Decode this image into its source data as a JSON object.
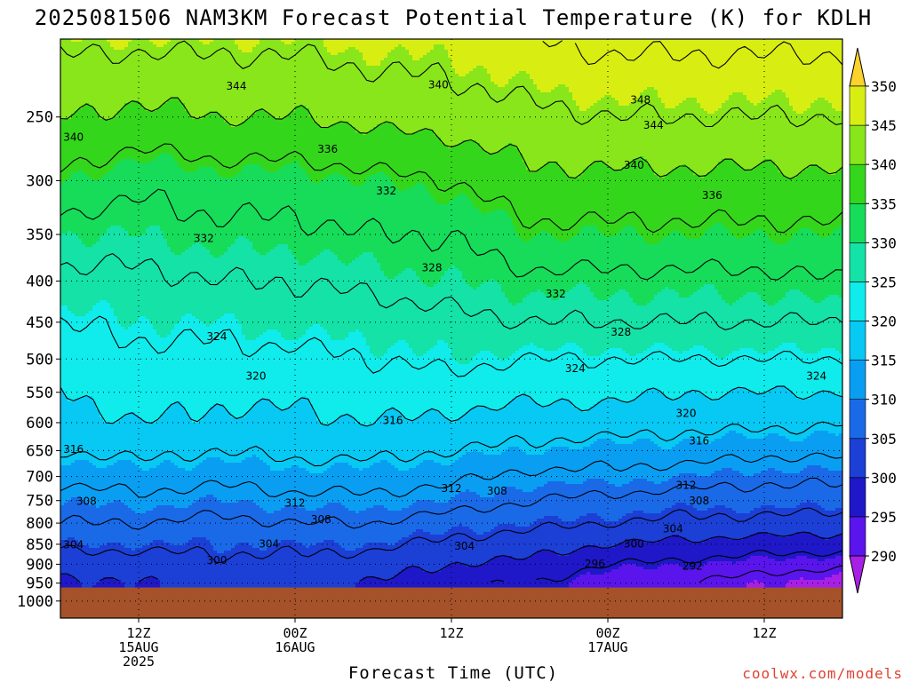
{
  "title": "2025081506 NAM3KM Forecast Potential Temperature (K) for KDLH",
  "xlabel": "Forecast Time (UTC)",
  "watermark": "coolwx.com/models",
  "chart_data": {
    "type": "heatmap",
    "title": "2025081506 NAM3KM Forecast Potential Temperature (K) for KDLH",
    "xlabel": "Forecast Time (UTC)",
    "ylabel": "",
    "y_scale": "log",
    "y_ticks": [
      250,
      300,
      350,
      400,
      450,
      500,
      550,
      600,
      650,
      700,
      750,
      800,
      850,
      900,
      950,
      1000
    ],
    "x_ticks": [
      {
        "hour": 6,
        "label": [
          "12Z",
          "15AUG",
          "2025"
        ]
      },
      {
        "hour": 18,
        "label": [
          "00Z",
          "16AUG"
        ]
      },
      {
        "hour": 30,
        "label": [
          "12Z"
        ]
      },
      {
        "hour": 42,
        "label": [
          "00Z",
          "17AUG"
        ]
      },
      {
        "hour": 54,
        "label": [
          "12Z"
        ]
      }
    ],
    "colorbar": {
      "levels": [
        290,
        295,
        300,
        305,
        310,
        315,
        320,
        325,
        330,
        335,
        340,
        345,
        350
      ],
      "labels": [
        "290",
        "295",
        "300",
        "305",
        "310",
        "315",
        "320",
        "325",
        "330",
        "335",
        "340",
        "345",
        "350"
      ],
      "colors": [
        "#a81fe6",
        "#5a14ec",
        "#1e18c8",
        "#1c3fd6",
        "#1a6ae8",
        "#0a9ef2",
        "#08c8f4",
        "#10ecec",
        "#14e2a6",
        "#16dc5a",
        "#34d61c",
        "#88e61a",
        "#d8ee12",
        "#fce21a",
        "#fcd22c"
      ]
    },
    "ground_color": "#a5522a",
    "theta_x_hours": [
      0,
      6,
      12,
      18,
      24,
      30,
      36,
      42,
      48,
      54,
      60
    ],
    "theta_pressure_levels": [
      950,
      900,
      850,
      800,
      750,
      700,
      650,
      600,
      550,
      500,
      450,
      400,
      350,
      300,
      250,
      200
    ],
    "theta_field": [
      [
        299,
        300,
        301,
        301,
        300,
        297,
        296,
        293,
        292,
        290,
        288
      ],
      [
        302,
        302,
        303,
        303,
        302,
        300,
        299,
        296,
        295,
        294,
        293
      ],
      [
        305,
        305,
        305,
        305,
        305,
        303,
        302,
        300,
        299,
        298,
        298
      ],
      [
        308,
        308,
        307,
        308,
        308,
        306,
        305,
        304,
        303,
        303,
        302
      ],
      [
        310,
        311,
        310,
        311,
        311,
        310,
        308,
        307,
        306,
        306,
        306
      ],
      [
        313,
        314,
        313,
        314,
        314,
        313,
        311,
        311,
        310,
        309,
        309
      ],
      [
        316,
        317,
        316,
        317,
        317,
        316,
        315,
        314,
        314,
        313,
        313
      ],
      [
        318,
        320,
        319,
        319,
        320,
        319,
        318,
        318,
        317,
        317,
        316
      ],
      [
        320,
        322,
        321,
        321,
        322,
        322,
        321,
        321,
        320,
        320,
        320
      ],
      [
        322,
        323,
        323,
        323,
        324,
        325,
        324,
        324,
        324,
        324,
        324
      ],
      [
        324,
        325,
        325,
        326,
        326,
        327,
        328,
        328,
        328,
        328,
        328
      ],
      [
        327,
        327,
        328,
        328,
        329,
        330,
        331,
        331,
        331,
        331,
        332
      ],
      [
        330,
        330,
        331,
        331,
        332,
        332,
        335,
        335,
        335,
        335,
        335
      ],
      [
        335,
        333,
        334,
        334,
        335,
        336,
        339,
        339,
        339,
        339,
        339
      ],
      [
        340,
        339,
        340,
        340,
        341,
        342,
        343,
        344,
        344,
        344,
        344
      ],
      [
        345,
        345,
        345,
        345,
        346,
        346,
        348,
        349,
        349,
        349,
        349
      ]
    ],
    "contour_labels": [
      {
        "value": "344",
        "hour": 13.5,
        "p": 229
      },
      {
        "value": "340",
        "hour": 29,
        "p": 228
      },
      {
        "value": "348",
        "hour": 44.5,
        "p": 238
      },
      {
        "value": "344",
        "hour": 45.5,
        "p": 256
      },
      {
        "value": "340",
        "hour": 1,
        "p": 265
      },
      {
        "value": "336",
        "hour": 20.5,
        "p": 274
      },
      {
        "value": "340",
        "hour": 44,
        "p": 287
      },
      {
        "value": "332",
        "hour": 25,
        "p": 309
      },
      {
        "value": "336",
        "hour": 50,
        "p": 313
      },
      {
        "value": "332",
        "hour": 11,
        "p": 354
      },
      {
        "value": "328",
        "hour": 28.5,
        "p": 385
      },
      {
        "value": "332",
        "hour": 38,
        "p": 415
      },
      {
        "value": "324",
        "hour": 12,
        "p": 469
      },
      {
        "value": "328",
        "hour": 43,
        "p": 463
      },
      {
        "value": "324",
        "hour": 39.5,
        "p": 514
      },
      {
        "value": "324",
        "hour": 58,
        "p": 525
      },
      {
        "value": "320",
        "hour": 15,
        "p": 525
      },
      {
        "value": "316",
        "hour": 25.5,
        "p": 596
      },
      {
        "value": "320",
        "hour": 48,
        "p": 584
      },
      {
        "value": "316",
        "hour": 1,
        "p": 648
      },
      {
        "value": "316",
        "hour": 49,
        "p": 632
      },
      {
        "value": "312",
        "hour": 30,
        "p": 724
      },
      {
        "value": "308",
        "hour": 33.5,
        "p": 730
      },
      {
        "value": "312",
        "hour": 48,
        "p": 718
      },
      {
        "value": "308",
        "hour": 2,
        "p": 752
      },
      {
        "value": "312",
        "hour": 18,
        "p": 755
      },
      {
        "value": "308",
        "hour": 20,
        "p": 792
      },
      {
        "value": "308",
        "hour": 49,
        "p": 751
      },
      {
        "value": "304",
        "hour": 1,
        "p": 851
      },
      {
        "value": "304",
        "hour": 16,
        "p": 849
      },
      {
        "value": "304",
        "hour": 31,
        "p": 854
      },
      {
        "value": "304",
        "hour": 47,
        "p": 813
      },
      {
        "value": "300",
        "hour": 12,
        "p": 890
      },
      {
        "value": "300",
        "hour": 44,
        "p": 849
      },
      {
        "value": "296",
        "hour": 41,
        "p": 899
      },
      {
        "value": "292",
        "hour": 48.5,
        "p": 905
      }
    ]
  }
}
